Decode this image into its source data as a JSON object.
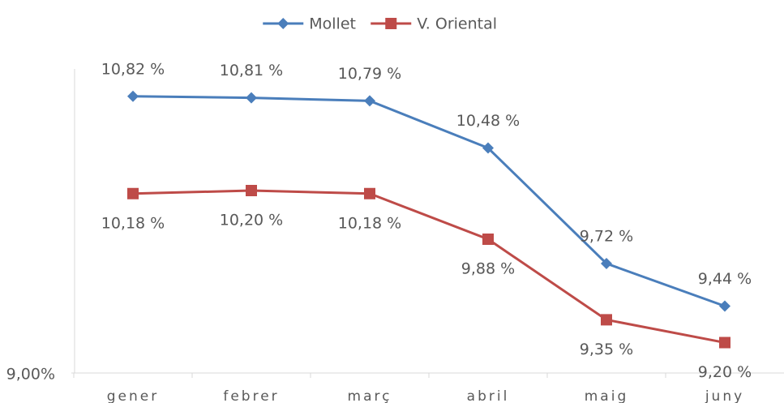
{
  "chart_data": {
    "type": "line",
    "categories": [
      "gener",
      "febrer",
      "març",
      "abril",
      "maig",
      "juny"
    ],
    "series": [
      {
        "name": "Mollet",
        "color": "#4a7ebb",
        "marker": "diamond",
        "values": [
          10.82,
          10.81,
          10.79,
          10.48,
          9.72,
          9.44
        ],
        "value_labels": [
          "10,82 %",
          "10,81 %",
          "10,79 %",
          "10,48 %",
          "9,72 %",
          "9,44 %"
        ]
      },
      {
        "name": "V. Oriental",
        "color": "#be4b48",
        "marker": "square",
        "values": [
          10.18,
          10.2,
          10.18,
          9.88,
          9.35,
          9.2
        ],
        "value_labels": [
          "10,18 %",
          "10,20 %",
          "10,18 %",
          "9,88 %",
          "9,35 %",
          "9,20 %"
        ]
      }
    ],
    "ylim": [
      9,
      11
    ],
    "yticks": [
      {
        "value": 9,
        "label": "9,00%"
      }
    ],
    "grid": false
  }
}
